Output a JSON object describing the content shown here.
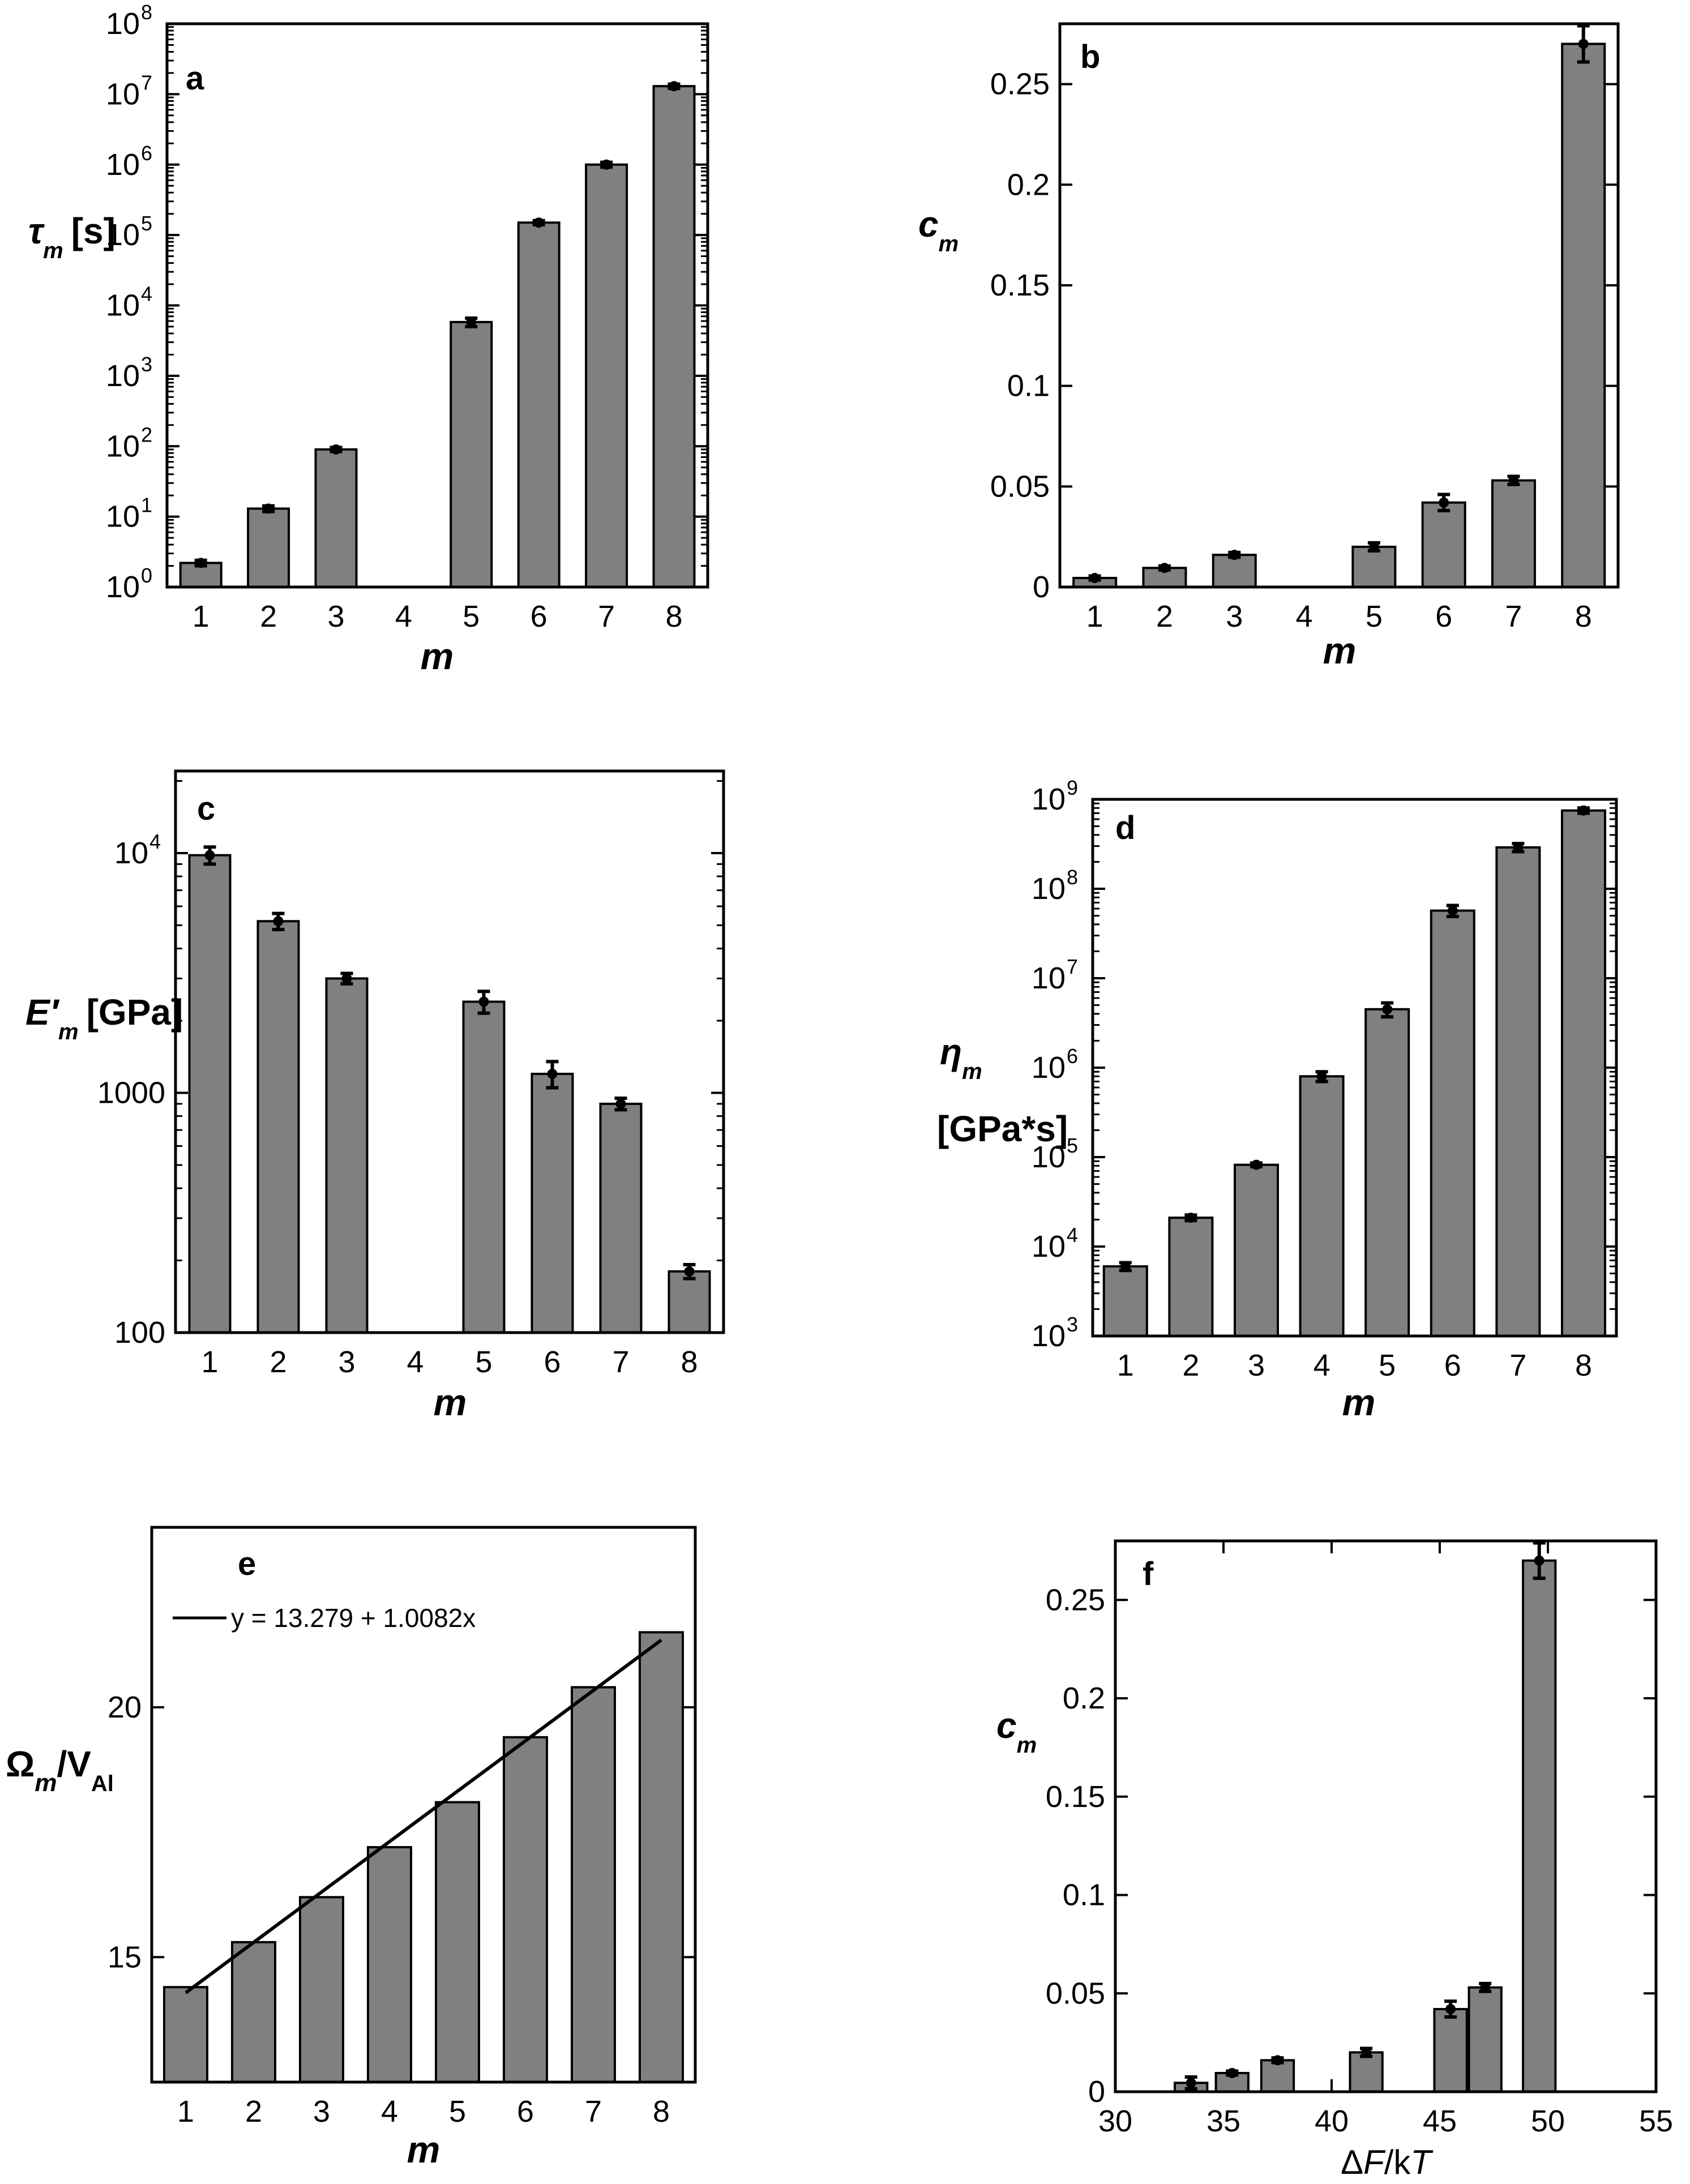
{
  "colors": {
    "bar": "#808080",
    "axis": "#000000",
    "background": "#ffffff"
  },
  "chart_data": [
    {
      "id": "a",
      "type": "bar",
      "panel_label": "a",
      "yscale": "log",
      "categories": [
        "1",
        "2",
        "3",
        "4",
        "5",
        "6",
        "7",
        "8"
      ],
      "values": [
        2.2,
        13,
        90,
        null,
        5800,
        150000,
        1000000,
        13000000
      ],
      "errors": [
        0.2,
        1.2,
        6,
        null,
        800,
        10000,
        80000,
        900000
      ],
      "ylim": [
        1,
        100000000
      ],
      "yticks": [
        1,
        10,
        100,
        1000,
        10000,
        100000,
        1000000,
        10000000,
        100000000
      ],
      "ytick_base": [
        "10",
        "10",
        "10",
        "10",
        "10",
        "10",
        "10",
        "10",
        "10"
      ],
      "ytick_exp": [
        "0",
        "1",
        "2",
        "3",
        "4",
        "5",
        "6",
        "7",
        "8"
      ],
      "xlabel": "m",
      "ylabel_main": "τ",
      "ylabel_sub": "m",
      "ylabel_unit": "[s]"
    },
    {
      "id": "b",
      "type": "bar",
      "panel_label": "b",
      "yscale": "linear",
      "categories": [
        "1",
        "2",
        "3",
        "4",
        "5",
        "6",
        "7",
        "8"
      ],
      "values": [
        0.0045,
        0.0095,
        0.016,
        null,
        0.02,
        0.042,
        0.053,
        0.27
      ],
      "errors": [
        0.001,
        0.001,
        0.0012,
        null,
        0.002,
        0.004,
        0.002,
        0.009
      ],
      "ylim": [
        0,
        0.28
      ],
      "yticks": [
        0,
        0.05,
        0.1,
        0.15,
        0.2,
        0.25
      ],
      "ytick_labels": [
        "0",
        "0.05",
        "0.1",
        "0.15",
        "0.2",
        "0.25"
      ],
      "xlabel": "m",
      "ylabel_main": "c",
      "ylabel_sub": "m"
    },
    {
      "id": "c",
      "type": "bar",
      "panel_label": "c",
      "yscale": "log",
      "categories": [
        "1",
        "2",
        "3",
        "4",
        "5",
        "6",
        "7",
        "8"
      ],
      "values": [
        9800,
        5200,
        3000,
        null,
        2400,
        1200,
        900,
        180
      ],
      "errors": [
        800,
        400,
        150,
        null,
        250,
        150,
        50,
        12
      ],
      "ylim": [
        100,
        22000
      ],
      "yticks": [
        100,
        1000,
        10000
      ],
      "ytick_base": [
        "100",
        "1000",
        "10"
      ],
      "ytick_exp": [
        "",
        "",
        "4"
      ],
      "xlabel": "m",
      "ylabel_main": "E′",
      "ylabel_sub": "m",
      "ylabel_unit": "[GPa]"
    },
    {
      "id": "d",
      "type": "bar",
      "panel_label": "d",
      "yscale": "log",
      "categories": [
        "1",
        "2",
        "3",
        "4",
        "5",
        "6",
        "7",
        "8"
      ],
      "values": [
        6000,
        21000,
        82000,
        800000,
        4500000,
        57000000,
        290000000,
        750000000
      ],
      "errors": [
        600,
        1500,
        4000,
        100000,
        800000,
        8000000,
        30000000,
        50000000
      ],
      "ylim": [
        1000,
        1000000000
      ],
      "yticks": [
        1000,
        10000,
        100000,
        1000000,
        10000000,
        100000000,
        1000000000
      ],
      "ytick_base": [
        "10",
        "10",
        "10",
        "10",
        "10",
        "10",
        "10"
      ],
      "ytick_exp": [
        "3",
        "4",
        "5",
        "6",
        "7",
        "8",
        "9"
      ],
      "xlabel": "m",
      "ylabel_main": "η",
      "ylabel_sub": "m",
      "ylabel_unit": "[GPa*s]"
    },
    {
      "id": "e",
      "type": "bar",
      "panel_label": "e",
      "yscale": "linear",
      "categories": [
        "1",
        "2",
        "3",
        "4",
        "5",
        "6",
        "7",
        "8"
      ],
      "values": [
        14.4,
        15.3,
        16.2,
        17.2,
        18.1,
        19.4,
        20.4,
        21.5
      ],
      "ylim": [
        12.5,
        23.6
      ],
      "yticks": [
        15,
        20
      ],
      "ytick_labels": [
        "15",
        "20"
      ],
      "fit": {
        "intercept": 13.279,
        "slope": 1.0082,
        "x_start": 1,
        "x_end": 8
      },
      "legend": "y = 13.279 + 1.0082x",
      "xlabel": "m",
      "ylabel_main": "Ω",
      "ylabel_sub": "m",
      "ylabel_sep": "/V",
      "ylabel_sub2": "Al"
    },
    {
      "id": "f",
      "type": "bar",
      "panel_label": "f",
      "yscale": "linear",
      "x": [
        33.5,
        35.4,
        37.5,
        41.6,
        45.5,
        47.1,
        49.6
      ],
      "values": [
        0.0045,
        0.0095,
        0.016,
        0.02,
        0.042,
        0.053,
        0.27
      ],
      "errors": [
        0.003,
        0.001,
        0.0012,
        0.002,
        0.004,
        0.002,
        0.009
      ],
      "bar_width": 1.5,
      "xlim": [
        30,
        55
      ],
      "ylim": [
        0,
        0.28
      ],
      "xticks": [
        30,
        35,
        40,
        45,
        50,
        55
      ],
      "xtick_labels": [
        "30",
        "35",
        "40",
        "45",
        "50",
        "55"
      ],
      "yticks": [
        0,
        0.05,
        0.1,
        0.15,
        0.2,
        0.25
      ],
      "ytick_labels": [
        "0",
        "0.05",
        "0.1",
        "0.15",
        "0.2",
        "0.25"
      ],
      "xlabel_delta": "Δ",
      "xlabel_F": "F",
      "xlabel_slash": "/k",
      "xlabel_T": "T",
      "ylabel_main": "c",
      "ylabel_sub": "m"
    }
  ]
}
